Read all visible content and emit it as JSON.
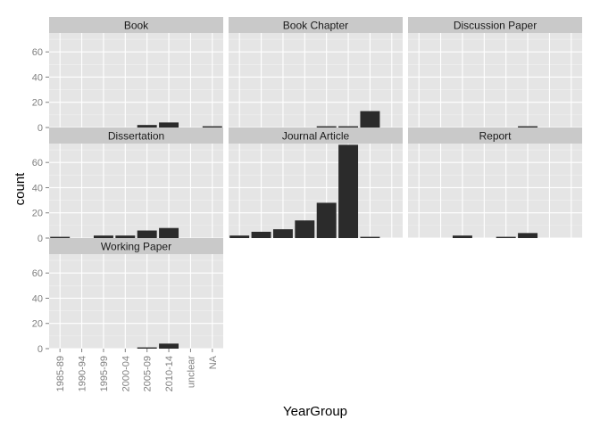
{
  "chart_data": {
    "type": "bar",
    "xlabel": "YearGroup",
    "ylabel": "count",
    "ylim": [
      0,
      75
    ],
    "yticks": [
      0,
      20,
      40,
      60
    ],
    "categories": [
      "1985-89",
      "1990-94",
      "1995-99",
      "2000-04",
      "2005-09",
      "2010-14",
      "unclear",
      "NA"
    ],
    "grid": true,
    "facets": [
      {
        "name": "Book",
        "values": [
          0,
          0,
          0,
          0,
          2,
          4,
          0,
          1
        ]
      },
      {
        "name": "Book Chapter",
        "values": [
          0,
          0,
          0,
          0,
          1,
          1,
          13,
          0
        ]
      },
      {
        "name": "Discussion Paper",
        "values": [
          0,
          0,
          0,
          0,
          0,
          1,
          0,
          0
        ]
      },
      {
        "name": "Dissertation",
        "values": [
          1,
          0,
          2,
          2,
          6,
          8,
          0,
          0
        ]
      },
      {
        "name": "Journal Article",
        "values": [
          2,
          5,
          7,
          14,
          28,
          74,
          1,
          0
        ]
      },
      {
        "name": "Report",
        "values": [
          0,
          0,
          2,
          0,
          1,
          4,
          0,
          0
        ]
      },
      {
        "name": "Working Paper",
        "values": [
          0,
          0,
          0,
          0,
          1,
          4,
          0,
          0
        ]
      }
    ]
  }
}
